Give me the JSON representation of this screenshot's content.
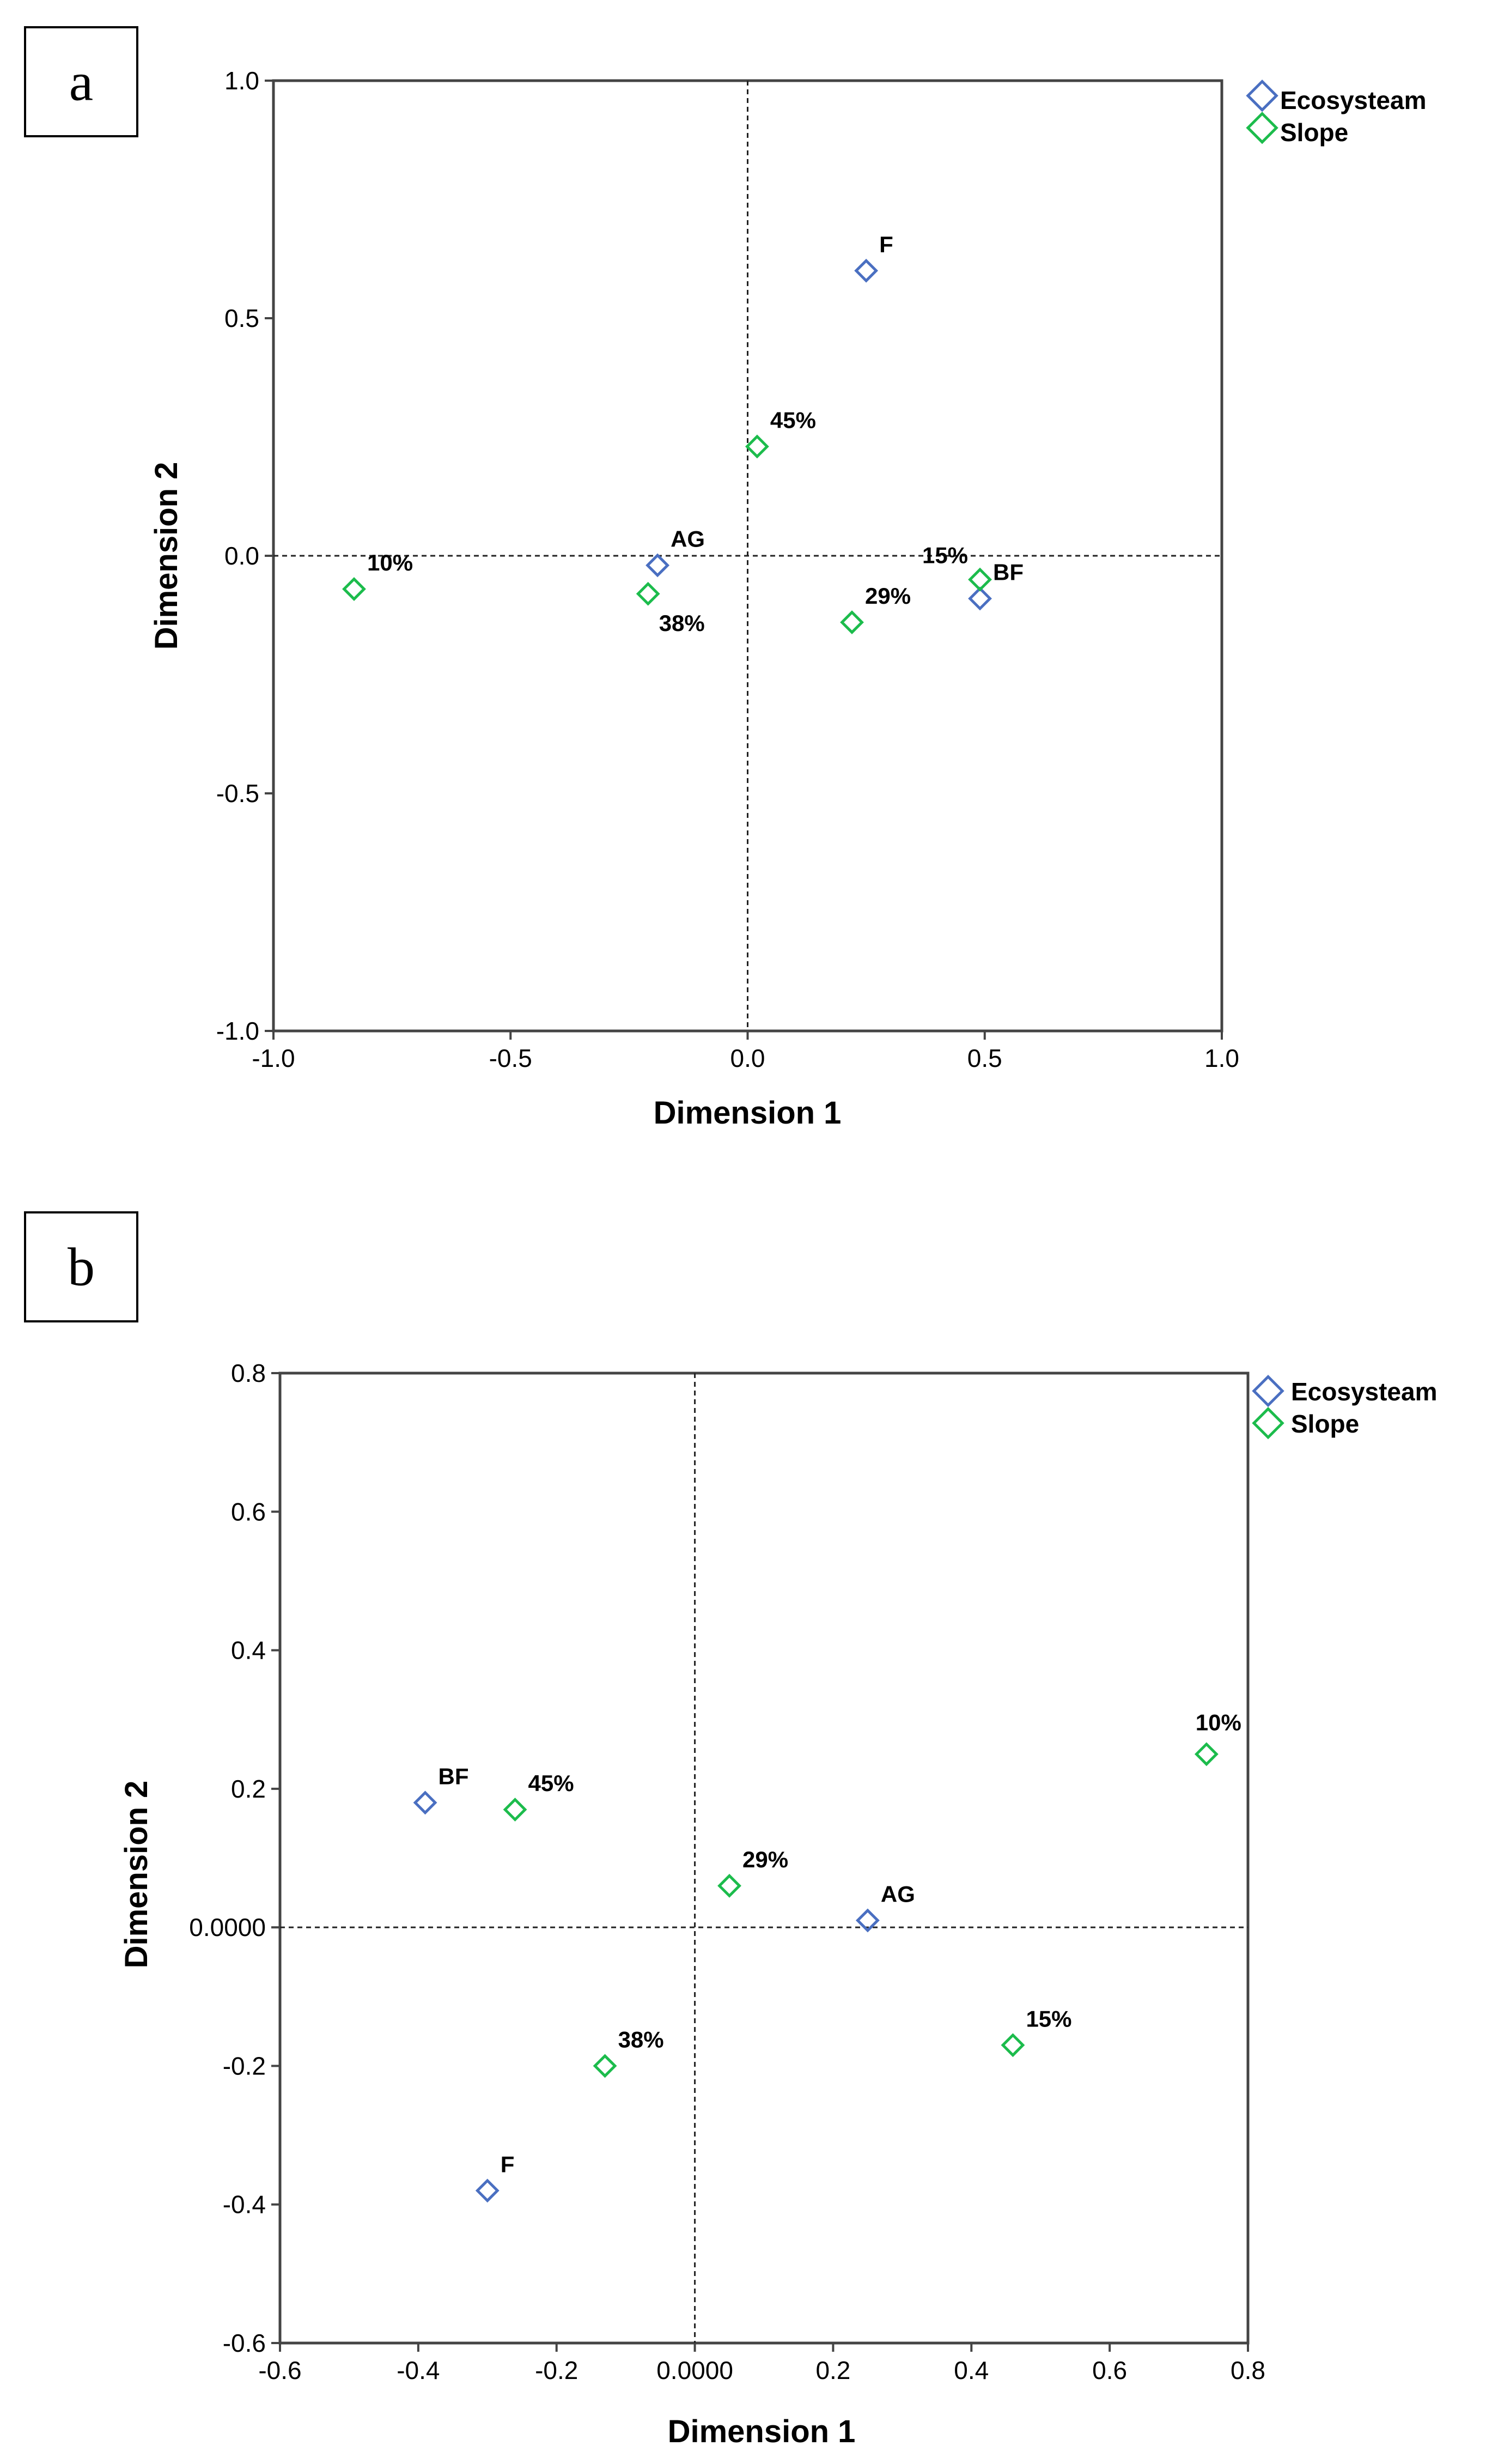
{
  "chart_data": [
    {
      "type": "scatter",
      "panel_label": "a",
      "xlabel": "Dimension 1",
      "ylabel": "Dimension 2",
      "xlim": [
        -1.0,
        1.0
      ],
      "ylim": [
        -1.0,
        1.0
      ],
      "xticks": [
        -1.0,
        -0.5,
        0.0,
        0.5,
        1.0
      ],
      "xtick_labels": [
        "-1.0",
        "-0.5",
        "0.0",
        "0.5",
        "1.0"
      ],
      "yticks": [
        -1.0,
        -0.5,
        0.0,
        0.5,
        1.0
      ],
      "ytick_labels": [
        "-1.0",
        "-0.5",
        "0.0",
        "0.5",
        "1.0"
      ],
      "reference_lines": {
        "x": 0,
        "y": 0,
        "style": "dashed"
      },
      "legend": {
        "placement": "top-right",
        "entries": [
          "Ecosysteam",
          "Slope"
        ]
      },
      "series": [
        {
          "name": "Ecosysteam",
          "color": "#4a6fc1",
          "points": [
            {
              "label": "F",
              "x": 0.25,
              "y": 0.6,
              "anchor": "above-right"
            },
            {
              "label": "AG",
              "x": -0.19,
              "y": -0.02,
              "anchor": "above-right"
            },
            {
              "label": "BF",
              "x": 0.49,
              "y": -0.09,
              "anchor": "above-right"
            }
          ]
        },
        {
          "name": "Slope",
          "color": "#1cbc4c",
          "points": [
            {
              "label": "45%",
              "x": 0.02,
              "y": 0.23,
              "anchor": "above-right"
            },
            {
              "label": "10%",
              "x": -0.83,
              "y": -0.07,
              "anchor": "above-right"
            },
            {
              "label": "38%",
              "x": -0.21,
              "y": -0.08,
              "anchor": "below-right"
            },
            {
              "label": "29%",
              "x": 0.22,
              "y": -0.14,
              "anchor": "above-right"
            },
            {
              "label": "15%",
              "x": 0.49,
              "y": -0.05,
              "anchor": "above-left"
            }
          ]
        }
      ]
    },
    {
      "type": "scatter",
      "panel_label": "b",
      "xlabel": "Dimension 1",
      "ylabel": "Dimension 2",
      "xlim": [
        -0.6,
        0.8
      ],
      "ylim": [
        -0.6,
        0.8
      ],
      "xticks": [
        -0.6,
        -0.4,
        -0.2,
        0.0,
        0.2,
        0.4,
        0.6,
        0.8
      ],
      "xtick_labels": [
        "-0.6",
        "-0.4",
        "-0.2",
        "0.0000",
        "0.2",
        "0.4",
        "0.6",
        "0.8"
      ],
      "yticks": [
        -0.6,
        -0.4,
        -0.2,
        0.0,
        0.2,
        0.4,
        0.6,
        0.8
      ],
      "ytick_labels": [
        "-0.6",
        "-0.4",
        "-0.2",
        "0.0000",
        "0.2",
        "0.4",
        "0.6",
        "0.8"
      ],
      "reference_lines": {
        "x": 0,
        "y": 0,
        "style": "dashed"
      },
      "legend": {
        "placement": "top-right",
        "entries": [
          "Ecosysteam",
          "Slope"
        ]
      },
      "series": [
        {
          "name": "Ecosysteam",
          "color": "#4a6fc1",
          "points": [
            {
              "label": "BF",
              "x": -0.39,
              "y": 0.18,
              "anchor": "above-right"
            },
            {
              "label": "AG",
              "x": 0.25,
              "y": 0.01,
              "anchor": "above-right"
            },
            {
              "label": "F",
              "x": -0.3,
              "y": -0.38,
              "anchor": "above-right"
            }
          ]
        },
        {
          "name": "Slope",
          "color": "#1cbc4c",
          "points": [
            {
              "label": "45%",
              "x": -0.26,
              "y": 0.17,
              "anchor": "above-right"
            },
            {
              "label": "10%",
              "x": 0.74,
              "y": 0.25,
              "anchor": "above"
            },
            {
              "label": "29%",
              "x": 0.05,
              "y": 0.06,
              "anchor": "above-right"
            },
            {
              "label": "38%",
              "x": -0.13,
              "y": -0.2,
              "anchor": "above-right"
            },
            {
              "label": "15%",
              "x": 0.46,
              "y": -0.17,
              "anchor": "above-right"
            }
          ]
        }
      ]
    }
  ]
}
